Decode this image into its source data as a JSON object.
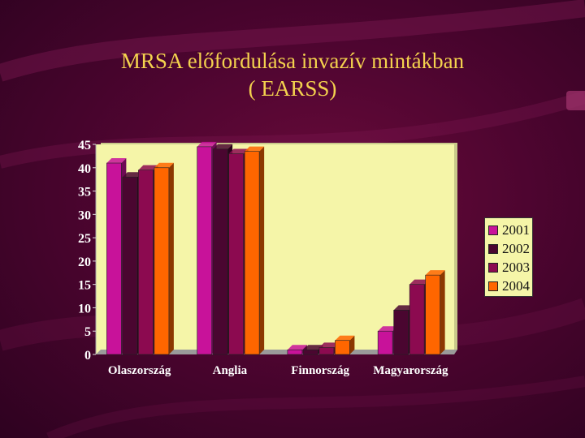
{
  "title": {
    "line1": "MRSA előfordulása invazív mintákban",
    "line2": "( EARSS)"
  },
  "colors": {
    "title": "#f4d24e",
    "plot_bg": "#f5f5a8",
    "axis_text": "#ffffff"
  },
  "chart_data": {
    "type": "bar",
    "title": "",
    "xlabel": "",
    "ylabel": "",
    "ylim": [
      0,
      45
    ],
    "yticks": [
      0,
      5,
      10,
      15,
      20,
      25,
      30,
      35,
      40,
      45
    ],
    "categories": [
      "Olaszország",
      "Anglia",
      "Finnország",
      "Magyarország"
    ],
    "series": [
      {
        "name": "2001",
        "color": "#c8129a",
        "values": [
          41,
          44.5,
          1,
          5
        ]
      },
      {
        "name": "2002",
        "color": "#4a0630",
        "values": [
          38,
          44,
          1,
          9.5
        ]
      },
      {
        "name": "2003",
        "color": "#8c0a50",
        "values": [
          39.5,
          43,
          1.5,
          15
        ]
      },
      {
        "name": "2004",
        "color": "#ff6600",
        "values": [
          40,
          43.5,
          3,
          17
        ]
      }
    ],
    "grid": false,
    "legend": "right"
  }
}
